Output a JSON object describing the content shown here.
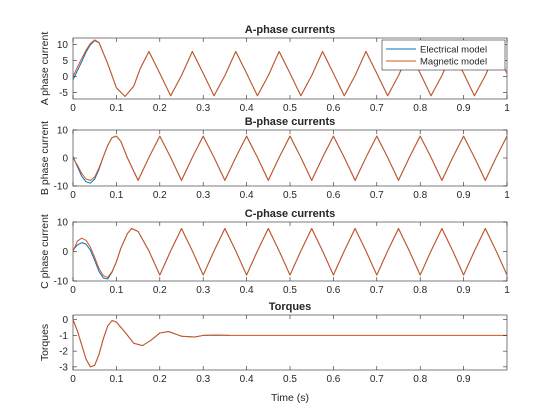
{
  "chart_data": [
    {
      "type": "line",
      "title": "A-phase currents",
      "xlabel": "",
      "ylabel": "A phase current",
      "xlim": [
        0,
        1
      ],
      "ylim": [
        -7,
        12
      ],
      "xticks": [
        0,
        0.1,
        0.2,
        0.3,
        0.4,
        0.5,
        0.6,
        0.7,
        0.8,
        0.9,
        1
      ],
      "xticklabels": [
        "0",
        "0.1",
        "0.2",
        "0.3",
        "0.4",
        "0.5",
        "0.6",
        "0.7",
        "0.8",
        "0.9",
        "1"
      ],
      "yticks": [
        -5,
        0,
        5,
        10
      ],
      "yticklabels": [
        "-5",
        "0",
        "5",
        "10"
      ],
      "legend": "top-right",
      "series": [
        {
          "name": "Electrical model",
          "color": "#0072BD",
          "x": [
            0,
            0.01,
            0.02,
            0.03,
            0.04,
            0.05,
            0.06,
            0.08,
            0.1,
            0.12,
            0.14,
            0.155,
            0.175,
            0.2,
            0.225,
            0.25,
            0.275,
            0.3,
            0.325,
            0.35,
            0.375,
            0.4,
            0.425,
            0.45,
            0.475,
            0.5,
            0.525,
            0.55,
            0.575,
            0.6,
            0.625,
            0.65,
            0.675,
            0.7,
            0.725,
            0.75,
            0.775,
            0.8,
            0.825,
            0.85,
            0.875,
            0.9,
            0.925,
            0.95,
            0.975,
            1
          ],
          "values": [
            -1,
            1.8,
            4.6,
            7.6,
            9.9,
            11.2,
            10.5,
            4.0,
            -3.5,
            -6.2,
            -3.0,
            2.5,
            7.8,
            1.0,
            -6.0,
            0.3,
            7.8,
            1.0,
            -6.0,
            0.3,
            7.8,
            1.0,
            -6.0,
            0.3,
            7.8,
            1.0,
            -6.0,
            0.3,
            7.8,
            1.0,
            -6.0,
            0.3,
            7.8,
            1.0,
            -6.0,
            0.3,
            7.8,
            1.0,
            -6.0,
            0.3,
            7.8,
            1.0,
            -6.0,
            0.3,
            7.8,
            1.0
          ]
        },
        {
          "name": "Magnetic model",
          "color": "#D95319",
          "x": [
            0,
            0.01,
            0.02,
            0.03,
            0.04,
            0.05,
            0.06,
            0.08,
            0.1,
            0.12,
            0.14,
            0.155,
            0.175,
            0.2,
            0.225,
            0.25,
            0.275,
            0.3,
            0.325,
            0.35,
            0.375,
            0.4,
            0.425,
            0.45,
            0.475,
            0.5,
            0.525,
            0.55,
            0.575,
            0.6,
            0.625,
            0.65,
            0.675,
            0.7,
            0.725,
            0.75,
            0.775,
            0.8,
            0.825,
            0.85,
            0.875,
            0.9,
            0.925,
            0.95,
            0.975,
            1
          ],
          "values": [
            0,
            2.9,
            5.6,
            8.2,
            10.3,
            11.4,
            10.6,
            4.0,
            -3.5,
            -6.2,
            -3.0,
            2.5,
            7.8,
            1.0,
            -6.0,
            0.3,
            7.8,
            1.0,
            -6.0,
            0.3,
            7.8,
            1.0,
            -6.0,
            0.3,
            7.8,
            1.0,
            -6.0,
            0.3,
            7.8,
            1.0,
            -6.0,
            0.3,
            7.8,
            1.0,
            -6.0,
            0.3,
            7.8,
            1.0,
            -6.0,
            0.3,
            7.8,
            1.0,
            -6.0,
            0.3,
            7.8,
            1.0
          ]
        }
      ]
    },
    {
      "type": "line",
      "title": "B-phase currents",
      "xlabel": "",
      "ylabel": "B phase current",
      "xlim": [
        0,
        1
      ],
      "ylim": [
        -10,
        10
      ],
      "xticks": [
        0,
        0.1,
        0.2,
        0.3,
        0.4,
        0.5,
        0.6,
        0.7,
        0.8,
        0.9,
        1
      ],
      "xticklabels": [
        "0",
        "0.1",
        "0.2",
        "0.3",
        "0.4",
        "0.5",
        "0.6",
        "0.7",
        "0.8",
        "0.9",
        "1"
      ],
      "yticks": [
        -10,
        0,
        10
      ],
      "yticklabels": [
        "-10",
        "0",
        "10"
      ],
      "series": [
        {
          "name": "Electrical model",
          "color": "#0072BD",
          "x": [
            0,
            0.01,
            0.02,
            0.03,
            0.04,
            0.05,
            0.06,
            0.07,
            0.08,
            0.09,
            0.1,
            0.11,
            0.125,
            0.15,
            0.175,
            0.2,
            0.225,
            0.25,
            0.275,
            0.3,
            0.325,
            0.35,
            0.375,
            0.4,
            0.425,
            0.45,
            0.475,
            0.5,
            0.525,
            0.55,
            0.575,
            0.6,
            0.625,
            0.65,
            0.675,
            0.7,
            0.725,
            0.75,
            0.775,
            0.8,
            0.825,
            0.85,
            0.875,
            0.9,
            0.925,
            0.95,
            0.975,
            1
          ],
          "values": [
            0.5,
            -3.0,
            -6.5,
            -8.5,
            -9.0,
            -7.5,
            -4.0,
            0.5,
            4.5,
            7.3,
            7.8,
            6.0,
            0.2,
            -8.0,
            0.2,
            7.8,
            0.2,
            -8.0,
            0.2,
            7.8,
            0.2,
            -8.0,
            0.2,
            7.8,
            0.2,
            -8.0,
            0.2,
            7.8,
            0.2,
            -8.0,
            0.2,
            7.8,
            0.2,
            -8.0,
            0.2,
            7.8,
            0.2,
            -8.0,
            0.2,
            7.8,
            0.2,
            -8.0,
            0.2,
            7.8,
            0.2,
            -8.0,
            0.2,
            7.8
          ]
        },
        {
          "name": "Magnetic model",
          "color": "#D95319",
          "x": [
            0,
            0.01,
            0.02,
            0.03,
            0.04,
            0.05,
            0.06,
            0.07,
            0.08,
            0.09,
            0.1,
            0.11,
            0.125,
            0.15,
            0.175,
            0.2,
            0.225,
            0.25,
            0.275,
            0.3,
            0.325,
            0.35,
            0.375,
            0.4,
            0.425,
            0.45,
            0.475,
            0.5,
            0.525,
            0.55,
            0.575,
            0.6,
            0.625,
            0.65,
            0.675,
            0.7,
            0.725,
            0.75,
            0.775,
            0.8,
            0.825,
            0.85,
            0.875,
            0.9,
            0.925,
            0.95,
            0.975,
            1
          ],
          "values": [
            0,
            -2.5,
            -5.5,
            -7.5,
            -8.0,
            -6.8,
            -3.5,
            0.5,
            4.5,
            7.3,
            7.8,
            6.0,
            0.2,
            -8.0,
            0.2,
            7.8,
            0.2,
            -8.0,
            0.2,
            7.8,
            0.2,
            -8.0,
            0.2,
            7.8,
            0.2,
            -8.0,
            0.2,
            7.8,
            0.2,
            -8.0,
            0.2,
            7.8,
            0.2,
            -8.0,
            0.2,
            7.8,
            0.2,
            -8.0,
            0.2,
            7.8,
            0.2,
            -8.0,
            0.2,
            7.8,
            0.2,
            -8.0,
            0.2,
            7.8
          ]
        }
      ]
    },
    {
      "type": "line",
      "title": "C-phase currents",
      "xlabel": "",
      "ylabel": "C phase current",
      "xlim": [
        0,
        1
      ],
      "ylim": [
        -10,
        10
      ],
      "xticks": [
        0,
        0.1,
        0.2,
        0.3,
        0.4,
        0.5,
        0.6,
        0.7,
        0.8,
        0.9,
        1
      ],
      "xticklabels": [
        "0",
        "0.1",
        "0.2",
        "0.3",
        "0.4",
        "0.5",
        "0.6",
        "0.7",
        "0.8",
        "0.9",
        "1"
      ],
      "yticks": [
        -10,
        0,
        10
      ],
      "yticklabels": [
        "-10",
        "0",
        "10"
      ],
      "series": [
        {
          "name": "Electrical model",
          "color": "#0072BD",
          "x": [
            0,
            0.01,
            0.02,
            0.03,
            0.04,
            0.05,
            0.06,
            0.07,
            0.08,
            0.09,
            0.1,
            0.11,
            0.125,
            0.135,
            0.15,
            0.175,
            0.2,
            0.225,
            0.25,
            0.275,
            0.3,
            0.325,
            0.35,
            0.375,
            0.4,
            0.425,
            0.45,
            0.475,
            0.5,
            0.525,
            0.55,
            0.575,
            0.6,
            0.625,
            0.65,
            0.675,
            0.7,
            0.725,
            0.75,
            0.775,
            0.8,
            0.825,
            0.85,
            0.875,
            0.9,
            0.925,
            0.95,
            0.975,
            1
          ],
          "values": [
            0.5,
            2.2,
            3.0,
            2.5,
            0.5,
            -3.0,
            -6.8,
            -9.0,
            -9.3,
            -7.0,
            -3.5,
            1.0,
            6.0,
            7.8,
            6.8,
            0.2,
            -8.0,
            0.2,
            7.8,
            0.2,
            -8.0,
            0.2,
            7.8,
            0.2,
            -8.0,
            0.2,
            7.8,
            0.2,
            -8.0,
            0.2,
            7.8,
            0.2,
            -8.0,
            0.2,
            7.8,
            0.2,
            -8.0,
            0.2,
            7.8,
            0.2,
            -8.0,
            0.2,
            7.8,
            0.2,
            -8.0,
            0.2,
            7.8,
            0.2,
            -8.0
          ]
        },
        {
          "name": "Magnetic model",
          "color": "#D95319",
          "x": [
            0,
            0.01,
            0.02,
            0.03,
            0.04,
            0.05,
            0.06,
            0.07,
            0.08,
            0.09,
            0.1,
            0.11,
            0.125,
            0.135,
            0.15,
            0.175,
            0.2,
            0.225,
            0.25,
            0.275,
            0.3,
            0.325,
            0.35,
            0.375,
            0.4,
            0.425,
            0.45,
            0.475,
            0.5,
            0.525,
            0.55,
            0.575,
            0.6,
            0.625,
            0.65,
            0.675,
            0.7,
            0.725,
            0.75,
            0.775,
            0.8,
            0.825,
            0.85,
            0.875,
            0.9,
            0.925,
            0.95,
            0.975,
            1
          ],
          "values": [
            0,
            3.5,
            4.5,
            3.8,
            1.5,
            -2.0,
            -5.8,
            -8.2,
            -8.8,
            -6.8,
            -3.5,
            1.0,
            6.0,
            7.8,
            6.8,
            0.2,
            -8.0,
            0.2,
            7.8,
            0.2,
            -8.0,
            0.2,
            7.8,
            0.2,
            -8.0,
            0.2,
            7.8,
            0.2,
            -8.0,
            0.2,
            7.8,
            0.2,
            -8.0,
            0.2,
            7.8,
            0.2,
            -8.0,
            0.2,
            7.8,
            0.2,
            -8.0,
            0.2,
            7.8,
            0.2,
            -8.0,
            0.2,
            7.8,
            0.2,
            -8.0
          ]
        }
      ]
    },
    {
      "type": "line",
      "title": "Torques",
      "xlabel": "Time (s)",
      "ylabel": "Torques",
      "xlim": [
        0,
        1
      ],
      "ylim": [
        -3.2,
        0.3
      ],
      "xticks": [
        0,
        0.1,
        0.2,
        0.3,
        0.4,
        0.5,
        0.6,
        0.7,
        0.8,
        0.9
      ],
      "xticklabels": [
        "0",
        "0.1",
        "0.2",
        "0.3",
        "0.4",
        "0.5",
        "0.6",
        "0.7",
        "0.8",
        "0.9"
      ],
      "yticks": [
        0,
        -1,
        -2,
        -3
      ],
      "yticklabels": [
        "0",
        "-1",
        "-2",
        "-3"
      ],
      "series": [
        {
          "name": "Electrical model",
          "color": "#0072BD",
          "x": [
            0,
            0.01,
            0.02,
            0.03,
            0.04,
            0.05,
            0.06,
            0.07,
            0.08,
            0.09,
            0.1,
            0.12,
            0.14,
            0.16,
            0.18,
            0.2,
            0.22,
            0.25,
            0.28,
            0.3,
            0.33,
            0.36
          ],
          "values": [
            0,
            -0.7,
            -1.6,
            -2.5,
            -3.0,
            -2.9,
            -2.2,
            -1.2,
            -0.4,
            -0.05,
            -0.15,
            -0.8,
            -1.5,
            -1.65,
            -1.3,
            -0.85,
            -0.75,
            -1.05,
            -1.1,
            -1.0,
            -0.98,
            -1.0
          ]
        },
        {
          "name": "Magnetic model",
          "color": "#D95319",
          "x": [
            0,
            0.01,
            0.02,
            0.03,
            0.04,
            0.05,
            0.06,
            0.07,
            0.08,
            0.09,
            0.1,
            0.12,
            0.14,
            0.16,
            0.18,
            0.2,
            0.22,
            0.25,
            0.28,
            0.3,
            0.33,
            0.36,
            0.4,
            0.5,
            0.6,
            0.7,
            0.8,
            0.9,
            1
          ],
          "values": [
            0,
            -0.7,
            -1.6,
            -2.5,
            -3.0,
            -2.9,
            -2.2,
            -1.2,
            -0.4,
            -0.05,
            -0.15,
            -0.8,
            -1.5,
            -1.65,
            -1.3,
            -0.85,
            -0.75,
            -1.05,
            -1.1,
            -1.0,
            -0.98,
            -1.0,
            -1.0,
            -1.0,
            -1.0,
            -1.0,
            -1.0,
            -1.0,
            -1.0
          ]
        }
      ]
    }
  ]
}
